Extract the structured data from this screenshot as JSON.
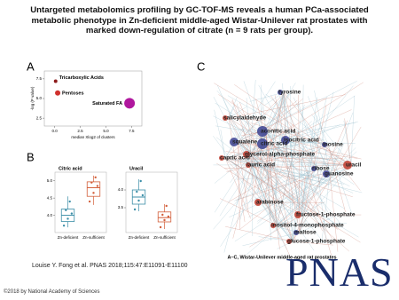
{
  "title": "Untargeted metabolomics profiling by GC-TOF-MS reveals a human PCa-associated metabolic phenotype in Zn-deficient middle-aged Wistar-Unilever rat prostates with marked down-regulation of citrate (n = 9 rats per group).",
  "panel_labels": [
    "A",
    "B",
    "C"
  ],
  "chart_data": [
    {
      "type": "scatter",
      "x_label": "median Xlog2 of clusters",
      "y_label": "-log (P value)",
      "xlim": [
        -1,
        8.5
      ],
      "ylim": [
        1.5,
        8.5
      ],
      "xticks": [
        {
          "value": 0,
          "label": "0.0"
        },
        {
          "value": 2.5,
          "label": "2.5"
        },
        {
          "value": 5,
          "label": "5.0"
        },
        {
          "value": 7.5,
          "label": "7.5"
        }
      ],
      "yticks": [
        {
          "value": 2.5,
          "label": "2.5"
        },
        {
          "value": 5,
          "label": "5.0"
        },
        {
          "value": 7.5,
          "label": "7.5"
        }
      ],
      "series": [
        {
          "name": "Tricarboxylic Acids",
          "color": "#8b1a1a",
          "x": [
            0.1
          ],
          "values": [
            7.2
          ],
          "sizes": [
            2
          ]
        },
        {
          "name": "Pentoses",
          "color": "#d0312d",
          "x": [
            0.3
          ],
          "values": [
            5.7
          ],
          "sizes": [
            3
          ]
        },
        {
          "name": "Saturated FA",
          "color": "#b0179e",
          "x": [
            7.3
          ],
          "values": [
            4.4
          ],
          "sizes": [
            6
          ]
        }
      ]
    },
    {
      "type": "box",
      "title": "Citric acid",
      "categories": [
        "Zn-deficient",
        "Zn-sufficient"
      ],
      "ylim": [
        3.5,
        5.25
      ],
      "yticks": [
        {
          "value": 4,
          "label": "4.0"
        },
        {
          "value": 4.5,
          "label": "4.5"
        },
        {
          "value": 5,
          "label": "5.0"
        }
      ],
      "series": [
        {
          "color": "#3d8fa8",
          "min": 3.65,
          "q1": 3.82,
          "median": 4.0,
          "q3": 4.18,
          "max": 4.55,
          "points": [
            3.7,
            3.9,
            4.05,
            4.15,
            4.4
          ]
        },
        {
          "color": "#d35f3a",
          "min": 4.3,
          "q1": 4.55,
          "median": 4.8,
          "q3": 4.97,
          "max": 5.15,
          "points": [
            4.4,
            4.65,
            4.85,
            4.95,
            5.1
          ]
        }
      ]
    },
    {
      "type": "box",
      "title": "Uracil",
      "categories": [
        "Zn-deficient",
        "Zn-sufficient"
      ],
      "ylim": [
        2.8,
        4.5
      ],
      "yticks": [
        {
          "value": 3.5,
          "label": "3.5"
        },
        {
          "value": 4,
          "label": "4.0"
        }
      ],
      "series": [
        {
          "color": "#3d8fa8",
          "min": 3.4,
          "q1": 3.6,
          "median": 3.8,
          "q3": 4.0,
          "max": 4.3,
          "points": [
            3.45,
            3.7,
            3.85,
            3.95,
            4.25
          ]
        },
        {
          "color": "#d35f3a",
          "min": 2.9,
          "q1": 3.1,
          "median": 3.22,
          "q3": 3.38,
          "max": 3.6,
          "points": [
            2.95,
            3.15,
            3.25,
            3.3,
            3.55
          ]
        }
      ]
    }
  ],
  "network": {
    "nodes": [
      "tyrosine",
      "salicylaldehyde",
      "aconitic acid",
      "isocitric acid",
      "squalene",
      "citric acid",
      "inosine",
      "glycerol-alpha-phosphate",
      "capric acid",
      "lauric acid",
      "ribose",
      "uracil",
      "guanosine",
      "arabinose",
      "fructose-1-phosphate",
      "inositol-4-monophosphate",
      "maltose",
      "glucose-1-phosphate"
    ],
    "caption": "A–C, Wistar-Unilever middle-aged rat prostates"
  },
  "citation": "Louise Y. Fong et al. PNAS 2018;115:47:E11091-E11100",
  "logo": "PNAS",
  "copyright": "©2018 by National Academy of Sciences"
}
